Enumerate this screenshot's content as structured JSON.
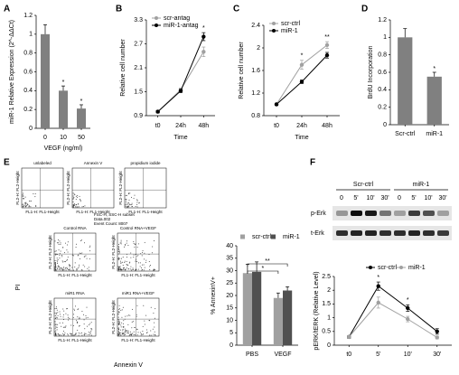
{
  "chart_data": [
    {
      "type": "bar",
      "label": "A",
      "ylabel": "miR-1 Relative Expression (2^-ΔΔCt)",
      "xlabel": "VEGF (ng/ml)",
      "categories": [
        "0",
        "10",
        "50"
      ],
      "values": [
        1.0,
        0.4,
        0.21
      ],
      "errors": [
        0.1,
        0.05,
        0.04
      ],
      "color": "#808080",
      "value_annotations": [
        null,
        "*",
        "*"
      ],
      "ylim": [
        0,
        1.2
      ],
      "yticks": [
        0,
        0.2,
        0.4,
        0.6,
        0.8,
        1,
        1.2
      ]
    },
    {
      "type": "line",
      "label": "B",
      "ylabel": "Relative cell number",
      "xlabel": "Time",
      "legend": "upper left",
      "categories": [
        "t0",
        "24h",
        "48h"
      ],
      "series": [
        {
          "name": "scr-antag",
          "color": "#a0a0a0",
          "values": [
            1.0,
            1.55,
            2.5
          ],
          "errors": [
            0.03,
            0.04,
            0.12
          ]
        },
        {
          "name": "miR-1-antag",
          "color": "#000000",
          "values": [
            1.0,
            1.52,
            2.88
          ],
          "errors": [
            0.03,
            0.04,
            0.1
          ]
        }
      ],
      "value_annotations": [
        null,
        null,
        "*"
      ],
      "ylim": [
        0.9,
        3.3
      ],
      "yticks": [
        0.9,
        1.5,
        2.1,
        2.7,
        3.3
      ]
    },
    {
      "type": "line",
      "label": "C",
      "ylabel": "Relative cell number",
      "xlabel": "Time",
      "legend": "upper left",
      "categories": [
        "t0",
        "24h",
        "48h"
      ],
      "series": [
        {
          "name": "scr-ctrl",
          "color": "#a0a0a0",
          "values": [
            1.0,
            1.7,
            2.05
          ],
          "errors": [
            0.02,
            0.08,
            0.06
          ]
        },
        {
          "name": "miR-1",
          "color": "#000000",
          "values": [
            1.0,
            1.4,
            1.87
          ],
          "errors": [
            0.02,
            0.03,
            0.05
          ]
        }
      ],
      "value_annotations": [
        null,
        "*",
        "**"
      ],
      "ylim": [
        0.8,
        2.4
      ],
      "yticks": [
        0.8,
        1.2,
        1.6,
        2,
        2.4
      ]
    },
    {
      "type": "bar",
      "label": "D",
      "ylabel": "BrdU Incorporation",
      "categories": [
        "Scr-ctrl",
        "miR-1"
      ],
      "values": [
        1.0,
        0.55
      ],
      "errors": [
        0.1,
        0.05
      ],
      "color": "#808080",
      "value_annotations": [
        null,
        "*"
      ],
      "ylim": [
        0,
        1.2
      ],
      "yticks": [
        0,
        0.2,
        0.4,
        0.6,
        0.8,
        1,
        1.2
      ]
    },
    {
      "type": "grouped_bar",
      "ylabel": "% AnnexinV+",
      "legend": "upper center",
      "categories": [
        "PBS",
        "VEGF"
      ],
      "series": [
        {
          "name": "scr-ctrl",
          "color": "#a0a0a0",
          "values": [
            29,
            19
          ],
          "errors": [
            3.5,
            2
          ]
        },
        {
          "name": "miR-1",
          "color": "#505050",
          "values": [
            29.5,
            22
          ],
          "errors": [
            4,
            1.5
          ]
        }
      ],
      "significance": [
        "*",
        "**"
      ],
      "ylim": [
        0,
        40
      ],
      "yticks": [
        0,
        5,
        10,
        15,
        20,
        25,
        30,
        35,
        40
      ]
    },
    {
      "type": "line",
      "label": "F",
      "ylabel": "pERK/tERK (Relative Level)",
      "legend": "upper center",
      "categories": [
        "t0",
        "5'",
        "10'",
        "30'"
      ],
      "series": [
        {
          "name": "scr-ctrl",
          "color": "#000000",
          "values": [
            0.3,
            2.15,
            1.35,
            0.5
          ],
          "errors": [
            0.05,
            0.15,
            0.12,
            0.1
          ]
        },
        {
          "name": "miR-1",
          "color": "#a0a0a0",
          "values": [
            0.3,
            1.55,
            0.95,
            0.28
          ],
          "errors": [
            0.05,
            0.2,
            0.1,
            0.05
          ]
        }
      ],
      "value_annotations": [
        null,
        "*",
        "*",
        null
      ],
      "ylim": [
        0,
        2.5
      ],
      "yticks": [
        0,
        0.5,
        1,
        1.5,
        2,
        2.5
      ]
    }
  ],
  "flow": {
    "label": "E",
    "y_label": "FL2-H: FL2-Height",
    "x_label": "FL1-H: FL1-Height",
    "top": [
      "unlabeled",
      "Annexin V",
      "propidium iodide"
    ],
    "gate": [
      "FSC-H, SSC-H subset",
      "Data.002",
      "Event Count: 8007"
    ],
    "bottom": [
      "Control RNA",
      "Control RNA+VEGF",
      "miR1 RNA",
      "miR1 RNA+VEGF"
    ],
    "axis_y": "PI",
    "axis_x": "Annexin V"
  },
  "blot": {
    "groups": [
      "Scr-ctrl",
      "miR-1"
    ],
    "lanes": [
      "0",
      "5'",
      "10'",
      "30'",
      "0",
      "5'",
      "10'",
      "30'"
    ],
    "rows": [
      "p-Erk",
      "t-Erk"
    ]
  }
}
